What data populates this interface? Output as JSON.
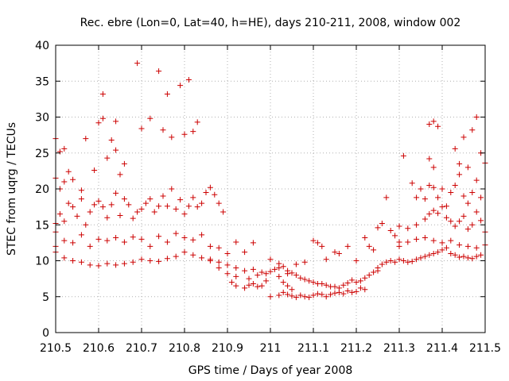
{
  "chart_data": {
    "type": "scatter",
    "title": "Rec. ebre (Lon=0, Lat=40, h=HE), days 210-211, 2008, window 002",
    "xlabel": "GPS time / Days of year 2008",
    "ylabel": "STEC from uqrg / TECUs",
    "xlim": [
      210.5,
      211.5
    ],
    "ylim": [
      0,
      40
    ],
    "xticks": [
      210.5,
      210.6,
      210.7,
      210.8,
      210.9,
      211,
      211.1,
      211.2,
      211.3,
      211.4,
      211.5
    ],
    "xtick_labels": [
      "210.5",
      "210.6",
      "210.7",
      "210.8",
      "210.9",
      "211",
      "211.1",
      "211.2",
      "211.3",
      "211.4",
      "211.5"
    ],
    "yticks": [
      0,
      5,
      10,
      15,
      20,
      25,
      30,
      35,
      40
    ],
    "ytick_labels": [
      "0",
      "5",
      "10",
      "15",
      "20",
      "25",
      "30",
      "35",
      "40"
    ],
    "grid": true,
    "marker": "+",
    "color": "#cc0000",
    "series": [
      {
        "values": [
          [
            210.5,
            27.0
          ],
          [
            210.5,
            21.5
          ],
          [
            210.51,
            25.2
          ],
          [
            210.52,
            25.6
          ],
          [
            210.53,
            22.4
          ],
          [
            210.51,
            20.0
          ],
          [
            210.52,
            21.0
          ],
          [
            210.54,
            21.3
          ],
          [
            210.56,
            19.8
          ],
          [
            210.57,
            27.0
          ],
          [
            210.59,
            22.6
          ],
          [
            210.6,
            29.2
          ],
          [
            210.61,
            29.8
          ],
          [
            210.61,
            33.2
          ],
          [
            210.62,
            24.3
          ],
          [
            210.63,
            26.8
          ],
          [
            210.64,
            25.4
          ],
          [
            210.65,
            22.0
          ],
          [
            210.66,
            23.5
          ],
          [
            210.64,
            29.4
          ],
          [
            210.69,
            37.5
          ],
          [
            210.7,
            28.4
          ],
          [
            210.72,
            29.8
          ],
          [
            210.74,
            36.4
          ],
          [
            210.75,
            28.2
          ],
          [
            210.76,
            33.2
          ],
          [
            210.77,
            27.2
          ],
          [
            210.79,
            34.4
          ],
          [
            210.8,
            27.6
          ],
          [
            210.81,
            35.2
          ],
          [
            210.82,
            28.0
          ],
          [
            210.83,
            29.3
          ],
          [
            210.5,
            14.0
          ],
          [
            210.5,
            15.2
          ],
          [
            210.51,
            16.5
          ],
          [
            210.52,
            15.5
          ],
          [
            210.53,
            18.0
          ],
          [
            210.54,
            17.5
          ],
          [
            210.55,
            16.2
          ],
          [
            210.56,
            18.6
          ],
          [
            210.57,
            15.0
          ],
          [
            210.58,
            16.8
          ],
          [
            210.59,
            17.8
          ],
          [
            210.6,
            18.3
          ],
          [
            210.61,
            17.5
          ],
          [
            210.62,
            16.0
          ],
          [
            210.63,
            17.8
          ],
          [
            210.64,
            19.4
          ],
          [
            210.65,
            16.3
          ],
          [
            210.66,
            18.6
          ],
          [
            210.67,
            17.8
          ],
          [
            210.68,
            15.9
          ],
          [
            210.69,
            16.8
          ],
          [
            210.7,
            17.2
          ],
          [
            210.71,
            18.0
          ],
          [
            210.72,
            18.6
          ],
          [
            210.73,
            16.8
          ],
          [
            210.74,
            17.6
          ],
          [
            210.75,
            19.0
          ],
          [
            210.76,
            17.6
          ],
          [
            210.77,
            20.0
          ],
          [
            210.78,
            17.2
          ],
          [
            210.79,
            18.5
          ],
          [
            210.8,
            16.5
          ],
          [
            210.81,
            17.6
          ],
          [
            210.82,
            18.8
          ],
          [
            210.83,
            17.5
          ],
          [
            210.84,
            18.0
          ],
          [
            210.85,
            19.5
          ],
          [
            210.86,
            20.2
          ],
          [
            210.87,
            19.2
          ],
          [
            210.88,
            18.0
          ],
          [
            210.89,
            16.8
          ],
          [
            210.5,
            12.0
          ],
          [
            210.52,
            12.8
          ],
          [
            210.54,
            12.5
          ],
          [
            210.56,
            13.6
          ],
          [
            210.58,
            12.0
          ],
          [
            210.6,
            13.0
          ],
          [
            210.62,
            12.8
          ],
          [
            210.64,
            13.2
          ],
          [
            210.66,
            12.6
          ],
          [
            210.68,
            13.3
          ],
          [
            210.7,
            13.0
          ],
          [
            210.72,
            12.0
          ],
          [
            210.74,
            13.4
          ],
          [
            210.76,
            12.6
          ],
          [
            210.78,
            13.8
          ],
          [
            210.8,
            13.2
          ],
          [
            210.82,
            12.9
          ],
          [
            210.84,
            13.6
          ],
          [
            210.86,
            12.0
          ],
          [
            210.88,
            11.8
          ],
          [
            210.9,
            11.0
          ],
          [
            210.92,
            12.6
          ],
          [
            210.94,
            11.2
          ],
          [
            210.96,
            12.5
          ],
          [
            210.5,
            11.2
          ],
          [
            210.52,
            10.4
          ],
          [
            210.54,
            10.0
          ],
          [
            210.56,
            9.8
          ],
          [
            210.58,
            9.4
          ],
          [
            210.6,
            9.3
          ],
          [
            210.62,
            9.6
          ],
          [
            210.64,
            9.4
          ],
          [
            210.66,
            9.6
          ],
          [
            210.68,
            9.8
          ],
          [
            210.7,
            10.2
          ],
          [
            210.72,
            10.0
          ],
          [
            210.74,
            9.9
          ],
          [
            210.76,
            10.3
          ],
          [
            210.78,
            10.6
          ],
          [
            210.8,
            11.2
          ],
          [
            210.82,
            10.8
          ],
          [
            210.84,
            10.4
          ],
          [
            210.86,
            10.2
          ],
          [
            210.88,
            9.8
          ],
          [
            210.9,
            9.4
          ],
          [
            210.92,
            9.0
          ],
          [
            210.94,
            8.6
          ],
          [
            210.96,
            8.8
          ],
          [
            210.98,
            8.4
          ],
          [
            211.0,
            8.5
          ],
          [
            211.02,
            9.0
          ],
          [
            211.04,
            8.2
          ],
          [
            210.86,
            10.0
          ],
          [
            210.88,
            9.0
          ],
          [
            210.9,
            8.2
          ],
          [
            210.91,
            7.0
          ],
          [
            210.92,
            6.5
          ],
          [
            210.94,
            6.2
          ],
          [
            210.95,
            6.6
          ],
          [
            210.96,
            6.8
          ],
          [
            210.97,
            6.4
          ],
          [
            210.98,
            6.5
          ],
          [
            210.99,
            7.2
          ],
          [
            210.92,
            7.8
          ],
          [
            210.95,
            7.5
          ],
          [
            210.97,
            8.0
          ],
          [
            210.99,
            8.2
          ],
          [
            211.0,
            10.2
          ],
          [
            211.01,
            8.8
          ],
          [
            211.02,
            7.8
          ],
          [
            211.03,
            7.0
          ],
          [
            211.04,
            6.5
          ],
          [
            211.05,
            6.0
          ],
          [
            211.0,
            5.0
          ],
          [
            211.02,
            5.2
          ],
          [
            211.03,
            5.6
          ],
          [
            211.04,
            5.3
          ],
          [
            211.05,
            5.1
          ],
          [
            211.06,
            4.9
          ],
          [
            211.07,
            5.2
          ],
          [
            211.08,
            5.0
          ],
          [
            211.09,
            4.9
          ],
          [
            211.1,
            5.2
          ],
          [
            211.11,
            5.4
          ],
          [
            211.12,
            5.3
          ],
          [
            211.13,
            5.0
          ],
          [
            211.14,
            5.3
          ],
          [
            211.15,
            5.5
          ],
          [
            211.16,
            5.6
          ],
          [
            211.17,
            5.4
          ],
          [
            211.18,
            5.8
          ],
          [
            211.19,
            5.6
          ],
          [
            211.2,
            5.7
          ],
          [
            211.21,
            6.2
          ],
          [
            211.22,
            6.0
          ],
          [
            211.02,
            9.6
          ],
          [
            211.03,
            9.2
          ],
          [
            211.04,
            8.6
          ],
          [
            211.05,
            8.3
          ],
          [
            211.06,
            8.0
          ],
          [
            211.07,
            7.6
          ],
          [
            211.08,
            7.4
          ],
          [
            211.09,
            7.2
          ],
          [
            211.1,
            7.0
          ],
          [
            211.11,
            6.8
          ],
          [
            211.12,
            6.8
          ],
          [
            211.13,
            6.6
          ],
          [
            211.14,
            6.4
          ],
          [
            211.15,
            6.4
          ],
          [
            211.16,
            6.2
          ],
          [
            211.17,
            6.6
          ],
          [
            211.18,
            6.9
          ],
          [
            211.19,
            7.3
          ],
          [
            211.2,
            7.0
          ],
          [
            211.21,
            7.2
          ],
          [
            211.22,
            7.6
          ],
          [
            211.23,
            8.0
          ],
          [
            211.24,
            8.4
          ],
          [
            211.25,
            8.6
          ],
          [
            211.06,
            9.5
          ],
          [
            211.08,
            9.8
          ],
          [
            211.1,
            12.8
          ],
          [
            211.11,
            12.5
          ],
          [
            211.12,
            12.0
          ],
          [
            211.13,
            10.2
          ],
          [
            211.15,
            11.2
          ],
          [
            211.16,
            11.0
          ],
          [
            211.18,
            12.0
          ],
          [
            211.2,
            10.0
          ],
          [
            211.22,
            13.2
          ],
          [
            211.23,
            12.0
          ],
          [
            211.24,
            11.5
          ],
          [
            211.25,
            14.6
          ],
          [
            211.26,
            15.2
          ],
          [
            211.27,
            18.8
          ],
          [
            211.28,
            14.2
          ],
          [
            211.29,
            13.5
          ],
          [
            211.3,
            12.6
          ],
          [
            211.25,
            9.0
          ],
          [
            211.26,
            9.5
          ],
          [
            211.27,
            9.8
          ],
          [
            211.28,
            10.0
          ],
          [
            211.29,
            9.8
          ],
          [
            211.3,
            10.2
          ],
          [
            211.31,
            10.0
          ],
          [
            211.32,
            9.8
          ],
          [
            211.33,
            9.9
          ],
          [
            211.34,
            10.2
          ],
          [
            211.35,
            10.4
          ],
          [
            211.36,
            10.6
          ],
          [
            211.37,
            10.8
          ],
          [
            211.38,
            11.0
          ],
          [
            211.39,
            11.2
          ],
          [
            211.4,
            11.5
          ],
          [
            211.41,
            11.8
          ],
          [
            211.42,
            11.0
          ],
          [
            211.43,
            10.8
          ],
          [
            211.44,
            10.5
          ],
          [
            211.45,
            10.6
          ],
          [
            211.46,
            10.4
          ],
          [
            211.47,
            10.3
          ],
          [
            211.48,
            10.6
          ],
          [
            211.49,
            10.8
          ],
          [
            211.3,
            12.0
          ],
          [
            211.32,
            12.6
          ],
          [
            211.34,
            13.0
          ],
          [
            211.36,
            13.2
          ],
          [
            211.38,
            12.8
          ],
          [
            211.4,
            12.5
          ],
          [
            211.42,
            12.8
          ],
          [
            211.44,
            12.2
          ],
          [
            211.46,
            12.0
          ],
          [
            211.48,
            11.8
          ],
          [
            211.5,
            12.2
          ],
          [
            211.3,
            14.8
          ],
          [
            211.32,
            14.5
          ],
          [
            211.34,
            15.0
          ],
          [
            211.36,
            15.8
          ],
          [
            211.37,
            16.5
          ],
          [
            211.38,
            17.0
          ],
          [
            211.39,
            16.6
          ],
          [
            211.4,
            17.5
          ],
          [
            211.41,
            16.0
          ],
          [
            211.42,
            15.5
          ],
          [
            211.43,
            14.8
          ],
          [
            211.44,
            15.5
          ],
          [
            211.45,
            16.2
          ],
          [
            211.46,
            14.4
          ],
          [
            211.47,
            15.0
          ],
          [
            211.48,
            16.8
          ],
          [
            211.49,
            15.6
          ],
          [
            211.5,
            14.0
          ],
          [
            211.31,
            24.6
          ],
          [
            211.33,
            20.8
          ],
          [
            211.34,
            18.8
          ],
          [
            211.35,
            20.0
          ],
          [
            211.36,
            18.6
          ],
          [
            211.37,
            20.5
          ],
          [
            211.38,
            20.2
          ],
          [
            211.39,
            18.8
          ],
          [
            211.4,
            20.0
          ],
          [
            211.41,
            17.6
          ],
          [
            211.42,
            19.5
          ],
          [
            211.43,
            20.5
          ],
          [
            211.44,
            22.0
          ],
          [
            211.45,
            19.0
          ],
          [
            211.46,
            18.0
          ],
          [
            211.47,
            19.5
          ],
          [
            211.48,
            21.2
          ],
          [
            211.49,
            18.8
          ],
          [
            211.37,
            24.2
          ],
          [
            211.38,
            23.0
          ],
          [
            211.37,
            29.0
          ],
          [
            211.38,
            29.4
          ],
          [
            211.39,
            28.7
          ],
          [
            211.43,
            25.6
          ],
          [
            211.44,
            23.5
          ],
          [
            211.45,
            27.2
          ],
          [
            211.46,
            23.0
          ],
          [
            211.47,
            28.2
          ],
          [
            211.48,
            30.0
          ],
          [
            211.49,
            25.0
          ],
          [
            211.5,
            23.6
          ]
        ]
      }
    ]
  }
}
